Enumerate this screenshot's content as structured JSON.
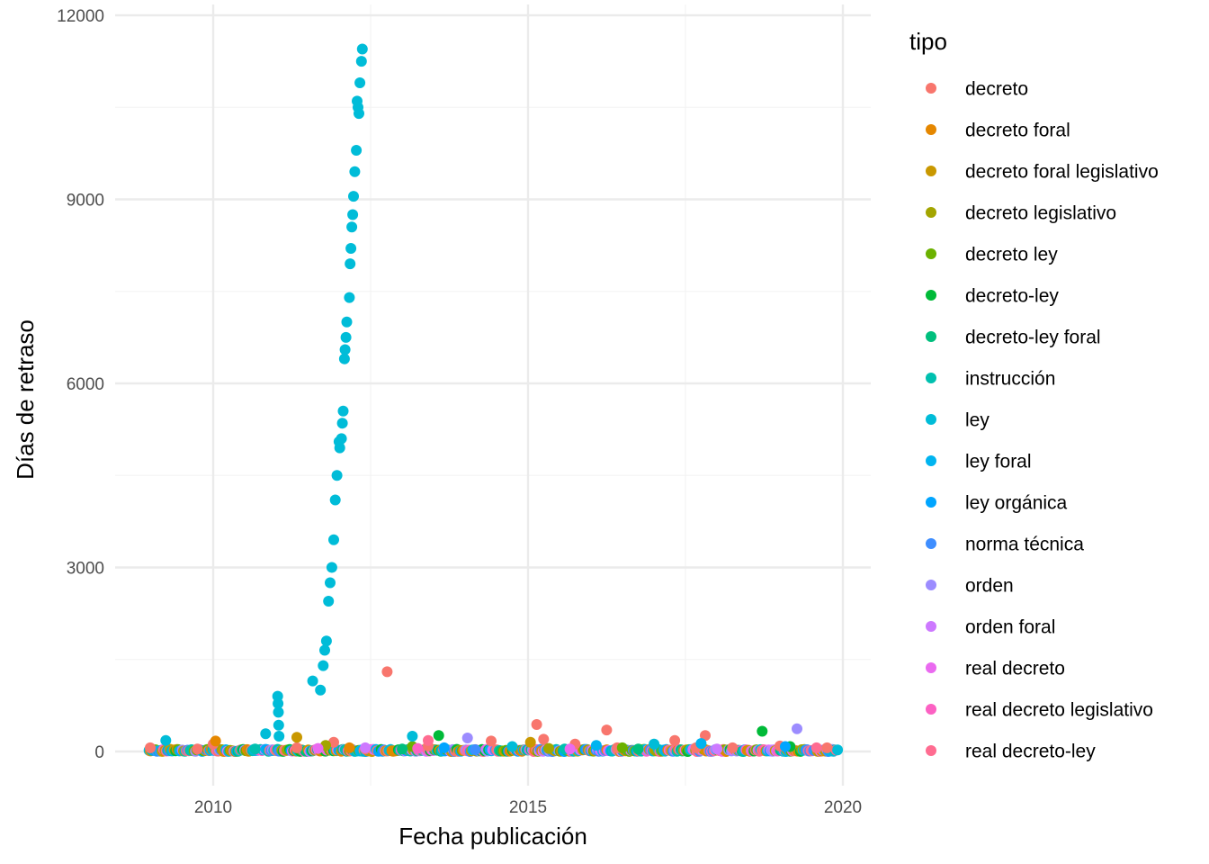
{
  "chart_data": {
    "type": "scatter",
    "title": "",
    "xlabel": "Fecha publicación",
    "ylabel": "Días de retraso",
    "xlim": [
      "2008-06-01",
      "2020-06-01"
    ],
    "ylim": [
      -1000,
      12000
    ],
    "x_ticks": [
      {
        "value": "2010-01-01",
        "label": "2010"
      },
      {
        "value": "2015-01-01",
        "label": "2015"
      },
      {
        "value": "2020-01-01",
        "label": "2020"
      }
    ],
    "y_ticks": [
      {
        "value": 0,
        "label": "0"
      },
      {
        "value": 3000,
        "label": "3000"
      },
      {
        "value": 6000,
        "label": "6000"
      },
      {
        "value": 9000,
        "label": "9000"
      },
      {
        "value": 12000,
        "label": "12000"
      }
    ],
    "grid": true,
    "legend": {
      "title": "tipo",
      "position": "right"
    },
    "series": [
      {
        "name": "decreto",
        "color": "#F8766D",
        "points": [
          [
            "2009-01-01",
            60
          ],
          [
            "2009-10-01",
            40
          ],
          [
            "2010-01-01",
            120
          ],
          [
            "2011-05-01",
            60
          ],
          [
            "2011-12-01",
            150
          ],
          [
            "2012-06-01",
            40
          ],
          [
            "2012-10-06",
            1300
          ],
          [
            "2013-06-01",
            90
          ],
          [
            "2014-06-01",
            170
          ],
          [
            "2015-02-20",
            440
          ],
          [
            "2015-04-01",
            200
          ],
          [
            "2015-10-01",
            120
          ],
          [
            "2016-04-01",
            350
          ],
          [
            "2016-06-01",
            60
          ],
          [
            "2017-05-01",
            180
          ],
          [
            "2017-09-01",
            60
          ],
          [
            "2017-10-25",
            260
          ],
          [
            "2018-04-01",
            60
          ],
          [
            "2019-01-01",
            90
          ],
          [
            "2019-10-01",
            60
          ]
        ]
      },
      {
        "name": "decreto foral",
        "color": "#E58700",
        "points": [
          [
            "2010-01-15",
            170
          ],
          [
            "2012-03-01",
            60
          ]
        ]
      },
      {
        "name": "decreto foral legislativo",
        "color": "#C99800",
        "points": [
          [
            "2011-05-01",
            230
          ],
          [
            "2015-01-15",
            150
          ]
        ]
      },
      {
        "name": "decreto legislativo",
        "color": "#A3A500",
        "points": [
          [
            "2011-10-15",
            100
          ],
          [
            "2015-05-01",
            50
          ]
        ]
      },
      {
        "name": "decreto ley",
        "color": "#6BB100",
        "points": [
          [
            "2013-03-01",
            80
          ],
          [
            "2016-07-01",
            60
          ]
        ]
      },
      {
        "name": "decreto-ley",
        "color": "#00BA38",
        "points": [
          [
            "2013-08-01",
            260
          ],
          [
            "2018-09-20",
            330
          ],
          [
            "2019-03-01",
            80
          ]
        ]
      },
      {
        "name": "decreto-ley foral",
        "color": "#00BF7D",
        "points": [
          [
            "2013-01-01",
            40
          ],
          [
            "2016-10-01",
            40
          ]
        ]
      },
      {
        "name": "instrucción",
        "color": "#00C0AF",
        "points": [
          [
            "2010-09-01",
            40
          ],
          [
            "2015-08-01",
            40
          ]
        ]
      },
      {
        "name": "ley",
        "color": "#00BCD8",
        "points": [
          [
            "2009-04-01",
            180
          ],
          [
            "2010-11-01",
            290
          ],
          [
            "2011-01-10",
            900
          ],
          [
            "2011-01-12",
            780
          ],
          [
            "2011-01-14",
            640
          ],
          [
            "2011-01-16",
            430
          ],
          [
            "2011-01-18",
            250
          ],
          [
            "2011-08-01",
            1150
          ],
          [
            "2011-09-15",
            1000
          ],
          [
            "2011-10-01",
            1400
          ],
          [
            "2011-10-10",
            1650
          ],
          [
            "2011-10-20",
            1800
          ],
          [
            "2011-11-01",
            2450
          ],
          [
            "2011-11-10",
            2750
          ],
          [
            "2011-11-20",
            3000
          ],
          [
            "2011-12-01",
            3450
          ],
          [
            "2011-12-10",
            4100
          ],
          [
            "2011-12-20",
            4500
          ],
          [
            "2012-01-01",
            5050
          ],
          [
            "2012-01-05",
            4950
          ],
          [
            "2012-01-15",
            5100
          ],
          [
            "2012-01-20",
            5350
          ],
          [
            "2012-01-25",
            5550
          ],
          [
            "2012-02-01",
            6400
          ],
          [
            "2012-02-05",
            6550
          ],
          [
            "2012-02-10",
            6750
          ],
          [
            "2012-02-15",
            7000
          ],
          [
            "2012-03-01",
            7400
          ],
          [
            "2012-03-05",
            7950
          ],
          [
            "2012-03-10",
            8200
          ],
          [
            "2012-03-15",
            8550
          ],
          [
            "2012-03-20",
            8750
          ],
          [
            "2012-03-25",
            9050
          ],
          [
            "2012-04-01",
            9450
          ],
          [
            "2012-04-10",
            9800
          ],
          [
            "2012-04-15",
            10600
          ],
          [
            "2012-04-20",
            10500
          ],
          [
            "2012-04-25",
            10400
          ],
          [
            "2012-05-01",
            10900
          ],
          [
            "2012-05-10",
            11250
          ],
          [
            "2012-05-15",
            11450
          ],
          [
            "2013-03-01",
            250
          ],
          [
            "2014-10-01",
            80
          ],
          [
            "2017-01-01",
            120
          ]
        ]
      },
      {
        "name": "ley foral",
        "color": "#00B4F0",
        "points": [
          [
            "2016-02-01",
            100
          ],
          [
            "2017-10-01",
            130
          ]
        ]
      },
      {
        "name": "ley orgánica",
        "color": "#00A5FF",
        "points": [
          [
            "2013-09-01",
            60
          ],
          [
            "2019-02-01",
            80
          ]
        ]
      },
      {
        "name": "norma técnica",
        "color": "#3E8EFF",
        "points": [
          [
            "2014-03-01",
            30
          ]
        ]
      },
      {
        "name": "orden",
        "color": "#9C8CFF",
        "points": [
          [
            "2014-01-15",
            220
          ],
          [
            "2019-04-10",
            370
          ]
        ]
      },
      {
        "name": "orden foral",
        "color": "#CD79FF",
        "points": [
          [
            "2012-06-01",
            60
          ],
          [
            "2018-01-01",
            40
          ]
        ]
      },
      {
        "name": "real decreto",
        "color": "#EA6AF0",
        "points": [
          [
            "2011-09-01",
            50
          ],
          [
            "2015-09-01",
            40
          ]
        ]
      },
      {
        "name": "real decreto legislativo",
        "color": "#FC61C3",
        "points": [
          [
            "2013-04-01",
            50
          ]
        ]
      },
      {
        "name": "real decreto-ley",
        "color": "#FF6C91",
        "points": [
          [
            "2013-06-01",
            180
          ],
          [
            "2019-08-01",
            60
          ]
        ]
      }
    ]
  }
}
